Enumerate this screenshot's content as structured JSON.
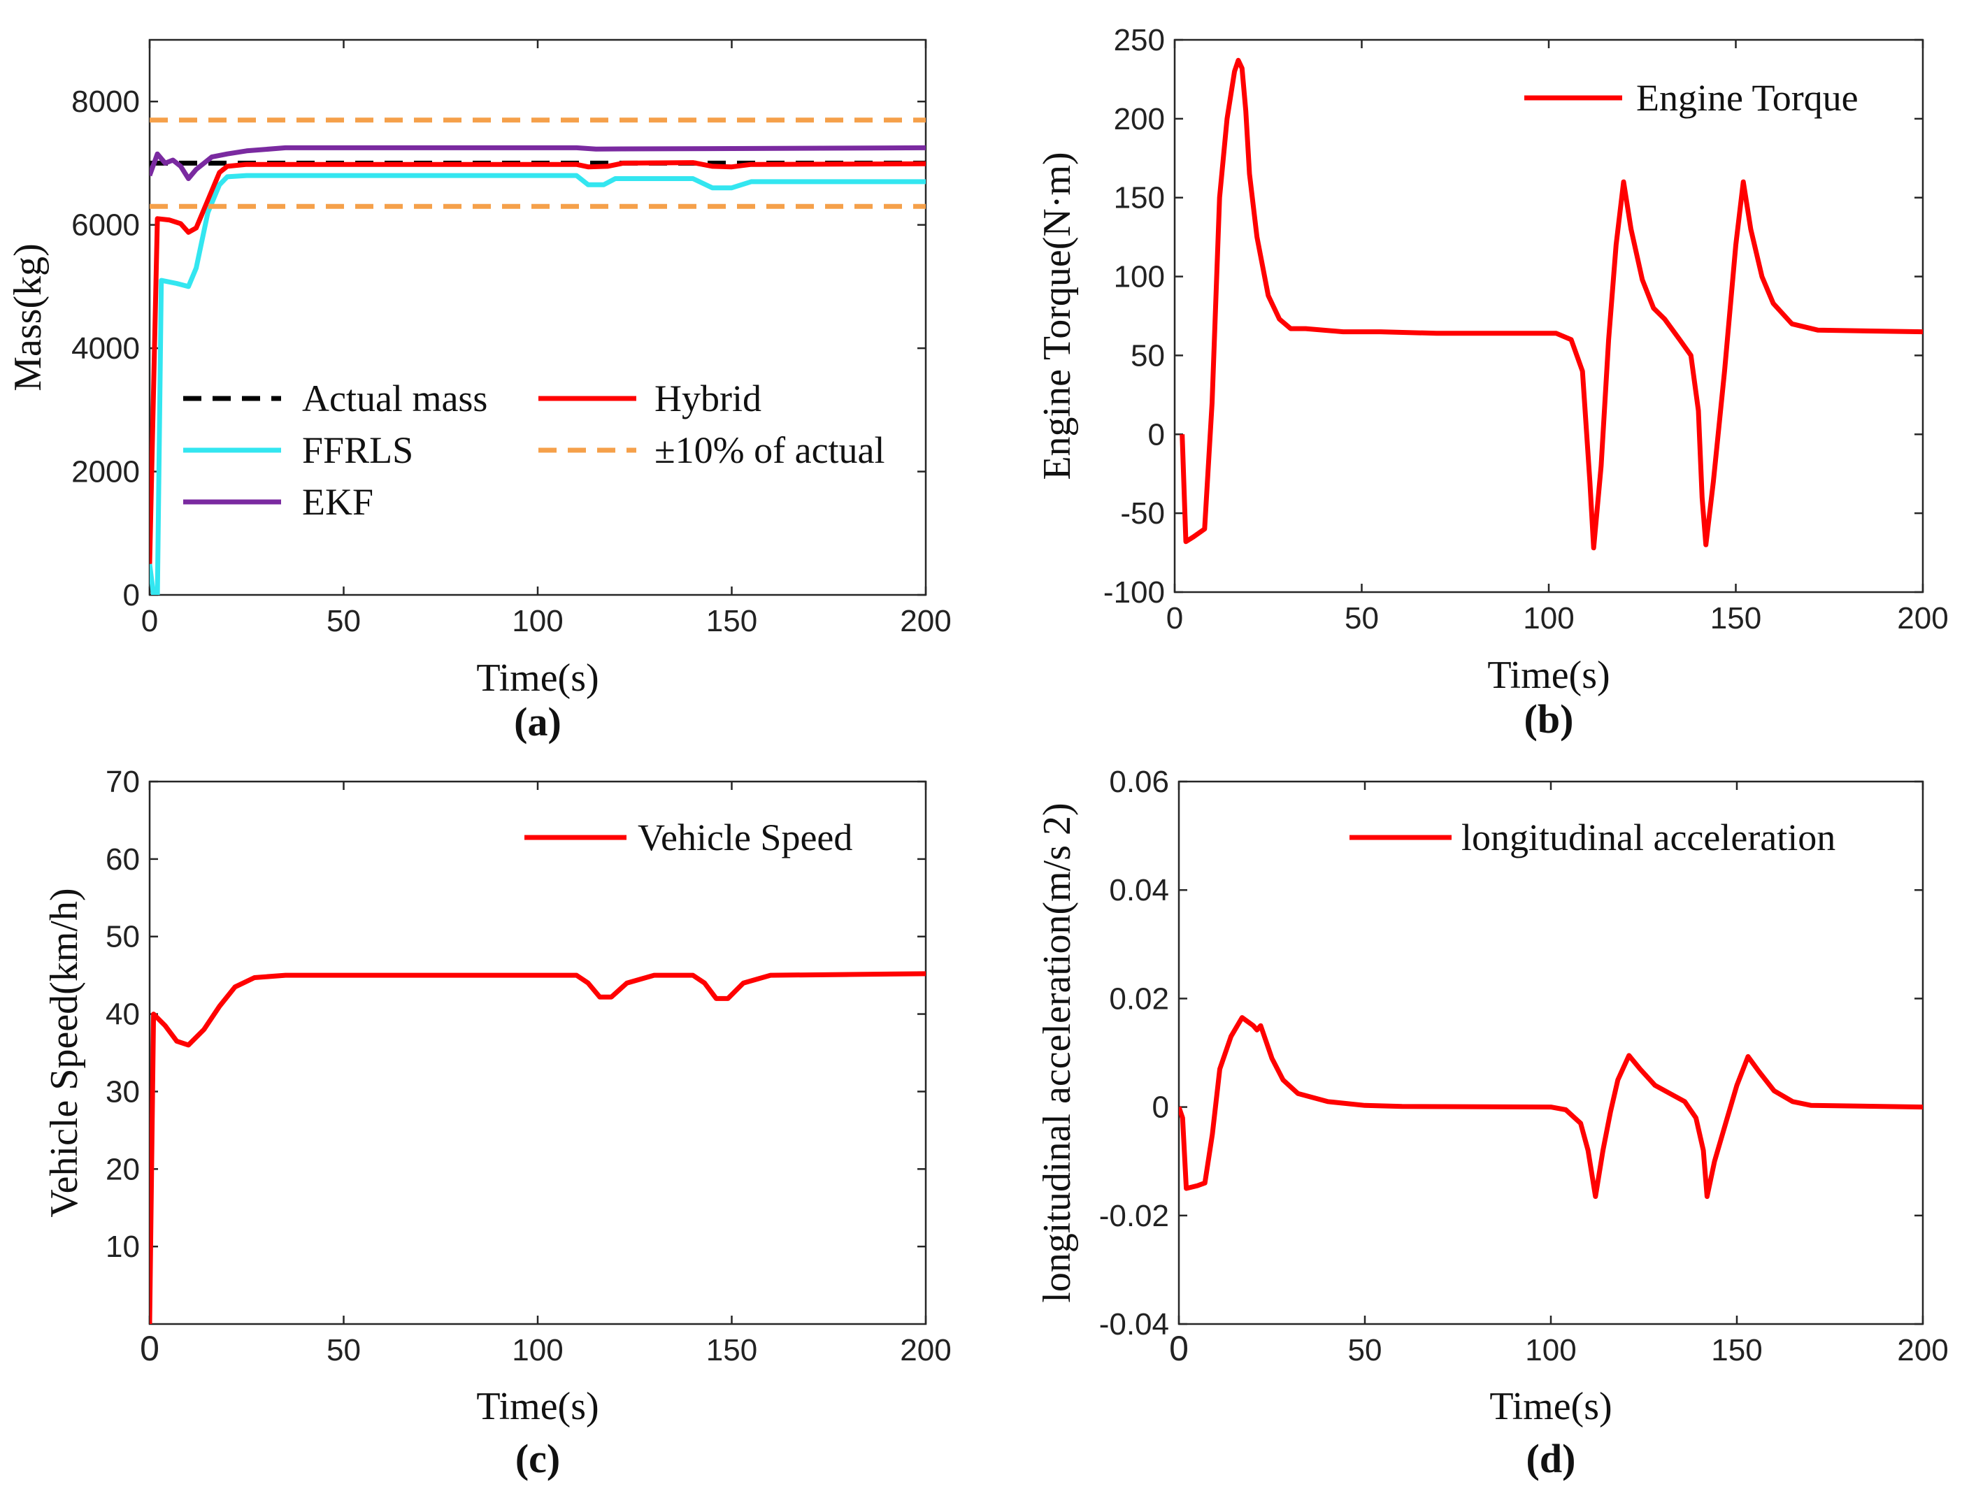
{
  "chart_data": [
    {
      "id": "a",
      "type": "line",
      "caption": "(a)",
      "xlabel": "Time(s)",
      "ylabel": "Mass(kg)",
      "xlim": [
        0,
        200
      ],
      "ylim": [
        0,
        9000
      ],
      "xticks": [
        0,
        50,
        100,
        150,
        200
      ],
      "xtick_labels": [
        "0",
        "50",
        "100",
        "150",
        "200"
      ],
      "yticks": [
        0,
        2000,
        4000,
        6000,
        8000
      ],
      "ytick_labels": [
        "0",
        "2000",
        "4000",
        "6000",
        "8000"
      ],
      "legend": "lower-left",
      "series": [
        {
          "name": "Actual mass",
          "legend_label": "Actual mass",
          "color": "#000000",
          "dash": "dashed",
          "points": [
            [
              0,
              7000
            ],
            [
              200,
              7000
            ]
          ]
        },
        {
          "name": "Hybrid",
          "legend_label": "Hybrid",
          "color": "#ff0000",
          "dash": "solid",
          "points": [
            [
              0,
              500
            ],
            [
              2,
              6100
            ],
            [
              5,
              6080
            ],
            [
              8,
              6020
            ],
            [
              10,
              5880
            ],
            [
              12,
              5950
            ],
            [
              15,
              6400
            ],
            [
              18,
              6850
            ],
            [
              20,
              6950
            ],
            [
              25,
              6980
            ],
            [
              110,
              6980
            ],
            [
              113,
              6940
            ],
            [
              118,
              6950
            ],
            [
              122,
              7000
            ],
            [
              140,
              7010
            ],
            [
              145,
              6950
            ],
            [
              150,
              6940
            ],
            [
              155,
              6980
            ],
            [
              200,
              6990
            ]
          ]
        },
        {
          "name": "FFRLS",
          "legend_label": "FFRLS",
          "color": "#33e6f0",
          "dash": "solid",
          "points": [
            [
              0,
              500
            ],
            [
              1,
              0
            ],
            [
              2,
              0
            ],
            [
              3,
              5100
            ],
            [
              7,
              5050
            ],
            [
              10,
              5000
            ],
            [
              12,
              5300
            ],
            [
              15,
              6200
            ],
            [
              18,
              6650
            ],
            [
              20,
              6780
            ],
            [
              25,
              6800
            ],
            [
              110,
              6800
            ],
            [
              113,
              6650
            ],
            [
              117,
              6650
            ],
            [
              120,
              6750
            ],
            [
              140,
              6750
            ],
            [
              145,
              6600
            ],
            [
              150,
              6600
            ],
            [
              155,
              6700
            ],
            [
              200,
              6700
            ]
          ]
        },
        {
          "name": "EKF",
          "legend_label": "EKF",
          "color": "#7a2aa0",
          "dash": "solid",
          "points": [
            [
              0,
              6800
            ],
            [
              2,
              7150
            ],
            [
              4,
              7000
            ],
            [
              6,
              7050
            ],
            [
              8,
              6950
            ],
            [
              10,
              6750
            ],
            [
              12,
              6900
            ],
            [
              16,
              7100
            ],
            [
              20,
              7150
            ],
            [
              25,
              7200
            ],
            [
              35,
              7250
            ],
            [
              110,
              7250
            ],
            [
              115,
              7230
            ],
            [
              200,
              7250
            ]
          ]
        },
        {
          "name": "±10% of actual (upper)",
          "legend_label": "±10% of actual",
          "color": "#f5a04a",
          "dash": "dashed",
          "points": [
            [
              0,
              7700
            ],
            [
              200,
              7700
            ]
          ]
        },
        {
          "name": "±10% of actual (lower)",
          "color": "#f5a04a",
          "dash": "dashed",
          "points": [
            [
              0,
              6300
            ],
            [
              200,
              6300
            ]
          ]
        }
      ]
    },
    {
      "id": "b",
      "type": "line",
      "caption": "(b)",
      "xlabel": "Time(s)",
      "ylabel": "Engine Torque(N·m)",
      "xlim": [
        0,
        200
      ],
      "ylim": [
        -100,
        250
      ],
      "xticks": [
        0,
        50,
        100,
        150,
        200
      ],
      "xtick_labels": [
        "0",
        "50",
        "100",
        "150",
        "200"
      ],
      "yticks": [
        -100,
        -50,
        0,
        50,
        100,
        150,
        200,
        250
      ],
      "ytick_labels": [
        "-100",
        "-50",
        "0",
        "50",
        "100",
        "150",
        "200",
        "250"
      ],
      "legend": "top-right",
      "series": [
        {
          "name": "Engine Torque",
          "legend_label": "Engine Torque",
          "color": "#ff0000",
          "dash": "solid",
          "points": [
            [
              2,
              0
            ],
            [
              3,
              -68
            ],
            [
              5,
              -65
            ],
            [
              8,
              -60
            ],
            [
              10,
              20
            ],
            [
              12,
              150
            ],
            [
              14,
              200
            ],
            [
              16,
              230
            ],
            [
              17,
              237
            ],
            [
              18,
              232
            ],
            [
              19,
              205
            ],
            [
              20,
              165
            ],
            [
              22,
              125
            ],
            [
              25,
              88
            ],
            [
              28,
              73
            ],
            [
              31,
              67
            ],
            [
              35,
              67
            ],
            [
              45,
              65
            ],
            [
              55,
              65
            ],
            [
              70,
              64
            ],
            [
              102,
              64
            ],
            [
              106,
              60
            ],
            [
              109,
              40
            ],
            [
              111,
              -30
            ],
            [
              112,
              -72
            ],
            [
              114,
              -20
            ],
            [
              116,
              60
            ],
            [
              118,
              120
            ],
            [
              120,
              160
            ],
            [
              122,
              130
            ],
            [
              125,
              98
            ],
            [
              128,
              80
            ],
            [
              131,
              73
            ],
            [
              135,
              60
            ],
            [
              138,
              50
            ],
            [
              140,
              15
            ],
            [
              141,
              -40
            ],
            [
              142,
              -70
            ],
            [
              144,
              -30
            ],
            [
              147,
              40
            ],
            [
              150,
              120
            ],
            [
              152,
              160
            ],
            [
              154,
              130
            ],
            [
              157,
              100
            ],
            [
              160,
              83
            ],
            [
              165,
              70
            ],
            [
              172,
              66
            ],
            [
              200,
              65
            ]
          ]
        }
      ]
    },
    {
      "id": "c",
      "type": "line",
      "caption": "(c)",
      "xlabel": "Time(s)",
      "ylabel": "Vehicle Speed(km/h)",
      "xlim": [
        0,
        200
      ],
      "ylim": [
        0,
        70
      ],
      "xticks": [
        0,
        50,
        100,
        150,
        200
      ],
      "xtick_labels": [
        "0",
        "50",
        "100",
        "150",
        "200"
      ],
      "yticks": [
        10,
        20,
        30,
        40,
        50,
        60,
        70
      ],
      "ytick_labels": [
        "10",
        "20",
        "30",
        "40",
        "50",
        "60",
        "70"
      ],
      "legend": "top-right",
      "series": [
        {
          "name": "Vehicle Speed",
          "legend_label": "Vehicle Speed",
          "color": "#ff0000",
          "dash": "solid",
          "points": [
            [
              0,
              0
            ],
            [
              1,
              40
            ],
            [
              4,
              38.5
            ],
            [
              7,
              36.5
            ],
            [
              10,
              36
            ],
            [
              14,
              38
            ],
            [
              18,
              41
            ],
            [
              22,
              43.5
            ],
            [
              27,
              44.7
            ],
            [
              35,
              45
            ],
            [
              110,
              45
            ],
            [
              113,
              44
            ],
            [
              116,
              42.2
            ],
            [
              119,
              42.2
            ],
            [
              123,
              44
            ],
            [
              130,
              45
            ],
            [
              140,
              45
            ],
            [
              143,
              44
            ],
            [
              146,
              42
            ],
            [
              149,
              42
            ],
            [
              153,
              44
            ],
            [
              160,
              45
            ],
            [
              200,
              45.2
            ]
          ]
        }
      ]
    },
    {
      "id": "d",
      "type": "line",
      "caption": "(d)",
      "xlabel": "Time(s)",
      "ylabel": "longitudinal acceleration(m/s 2)",
      "xlim": [
        0,
        200
      ],
      "ylim": [
        -0.04,
        0.06
      ],
      "xticks": [
        0,
        50,
        100,
        150,
        200
      ],
      "xtick_labels": [
        "0",
        "50",
        "100",
        "150",
        "200"
      ],
      "yticks": [
        -0.04,
        -0.02,
        0,
        0.02,
        0.04,
        0.06
      ],
      "ytick_labels": [
        "-0.04",
        "-0.02",
        "0",
        "0.02",
        "0.04",
        "0.06"
      ],
      "legend": "top-right",
      "series": [
        {
          "name": "longitudinal acceleration",
          "legend_label": "longitudinal acceleration",
          "color": "#ff0000",
          "dash": "solid",
          "points": [
            [
              0,
              0
            ],
            [
              1,
              -0.002
            ],
            [
              2,
              -0.015
            ],
            [
              5,
              -0.0145
            ],
            [
              7,
              -0.014
            ],
            [
              9,
              -0.005
            ],
            [
              11,
              0.007
            ],
            [
              14,
              0.013
            ],
            [
              17,
              0.0165
            ],
            [
              20,
              0.015
            ],
            [
              21,
              0.0142
            ],
            [
              22,
              0.015
            ],
            [
              25,
              0.009
            ],
            [
              28,
              0.005
            ],
            [
              32,
              0.0025
            ],
            [
              40,
              0.001
            ],
            [
              50,
              0.0003
            ],
            [
              60,
              0.0001
            ],
            [
              100,
              0
            ],
            [
              104,
              -0.0005
            ],
            [
              108,
              -0.003
            ],
            [
              110,
              -0.008
            ],
            [
              112,
              -0.0165
            ],
            [
              114,
              -0.008
            ],
            [
              116,
              -0.001
            ],
            [
              118,
              0.005
            ],
            [
              121,
              0.0095
            ],
            [
              124,
              0.007
            ],
            [
              128,
              0.004
            ],
            [
              132,
              0.0025
            ],
            [
              136,
              0.001
            ],
            [
              139,
              -0.002
            ],
            [
              141,
              -0.008
            ],
            [
              142,
              -0.0165
            ],
            [
              144,
              -0.01
            ],
            [
              147,
              -0.003
            ],
            [
              150,
              0.004
            ],
            [
              153,
              0.0093
            ],
            [
              156,
              0.0065
            ],
            [
              160,
              0.003
            ],
            [
              165,
              0.001
            ],
            [
              170,
              0.0003
            ],
            [
              200,
              0
            ]
          ]
        }
      ]
    }
  ]
}
